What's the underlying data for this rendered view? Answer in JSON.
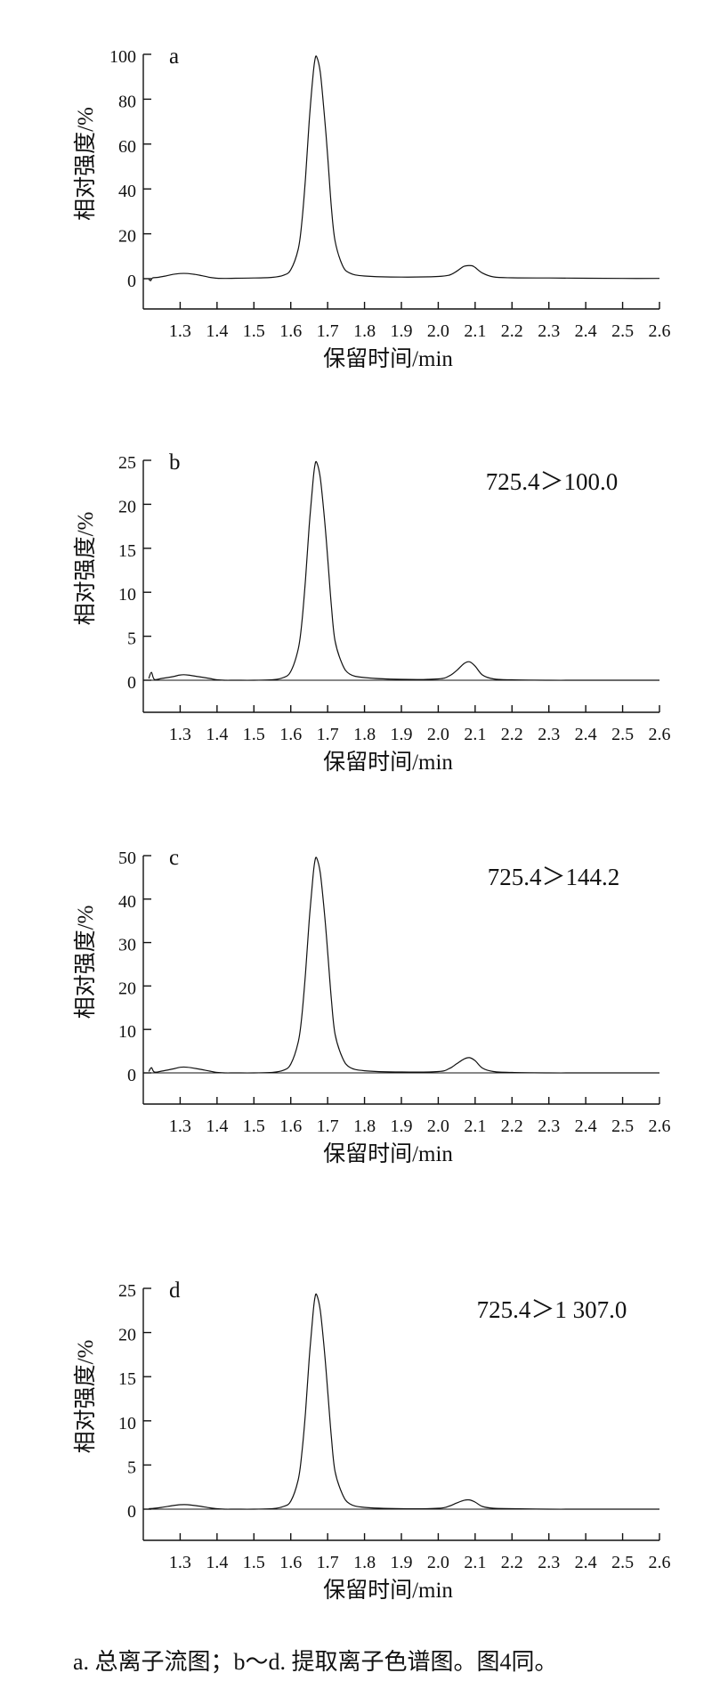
{
  "caption": "a. 总离子流图；b～d. 提取离子色谱图。图4同。",
  "chart_data": [
    {
      "type": "line",
      "panel_label": "a",
      "annotation": "",
      "xlabel": "保留时间/min",
      "ylabel": "相对强度/%",
      "xlim": [
        1.2,
        2.6
      ],
      "ylim": [
        -15,
        100
      ],
      "yticks": [
        0,
        20,
        40,
        60,
        80,
        100
      ],
      "yticks_labels": [
        "0",
        "20",
        "40",
        "60",
        "80",
        "100"
      ],
      "xticks": [
        1.3,
        1.4,
        1.5,
        1.6,
        1.7,
        1.8,
        1.9,
        2.0,
        2.1,
        2.2,
        2.3,
        2.4,
        2.5,
        2.6
      ],
      "xticks_labels": [
        "1.3",
        "1.4",
        "1.5",
        "1.6",
        "1.7",
        "1.8",
        "1.9",
        "2.0",
        "2.1",
        "2.2",
        "2.3",
        "2.4",
        "2.5",
        "2.6"
      ],
      "baseline_line": false,
      "series": [
        {
          "x": [
            1.215,
            1.22,
            1.225,
            1.24,
            1.26,
            1.28,
            1.3,
            1.32,
            1.34,
            1.36,
            1.38,
            1.4,
            1.42,
            1.45,
            1.5,
            1.55,
            1.58,
            1.6,
            1.62,
            1.63,
            1.64,
            1.65,
            1.66,
            1.665,
            1.67,
            1.68,
            1.69,
            1.7,
            1.71,
            1.72,
            1.74,
            1.76,
            1.8,
            1.9,
            2.0,
            2.03,
            2.05,
            2.07,
            2.09,
            2.1,
            2.12,
            2.15,
            2.2,
            2.3,
            2.4,
            2.5,
            2.6
          ],
          "y": [
            -0.3,
            -0.9,
            0.3,
            0.6,
            1.2,
            1.9,
            2.3,
            2.3,
            1.9,
            1.3,
            0.6,
            0.2,
            0.1,
            0.2,
            0.3,
            0.6,
            1.5,
            4,
            13,
            25,
            45,
            70,
            90,
            97,
            99,
            92,
            75,
            55,
            32,
            17,
            6,
            2.5,
            1.2,
            0.7,
            1.0,
            1.6,
            3.3,
            5.5,
            5.8,
            5.0,
            2.5,
            0.8,
            0.4,
            0.3,
            0.2,
            0.1,
            0.1
          ]
        }
      ]
    },
    {
      "type": "line",
      "panel_label": "b",
      "annotation": "725.4＞100.0",
      "xlabel": "保留时间/min",
      "ylabel": "相对强度/%",
      "xlim": [
        1.2,
        2.6
      ],
      "ylim": [
        -3.5,
        25
      ],
      "yticks": [
        0,
        5,
        10,
        15,
        20,
        25
      ],
      "yticks_labels": [
        "0",
        "5",
        "10",
        "15",
        "20",
        "25"
      ],
      "xticks": [
        1.3,
        1.4,
        1.5,
        1.6,
        1.7,
        1.8,
        1.9,
        2.0,
        2.1,
        2.2,
        2.3,
        2.4,
        2.5,
        2.6
      ],
      "xticks_labels": [
        "1.3",
        "1.4",
        "1.5",
        "1.6",
        "1.7",
        "1.8",
        "1.9",
        "2.0",
        "2.1",
        "2.2",
        "2.3",
        "2.4",
        "2.5",
        "2.6"
      ],
      "baseline_line": true,
      "series": [
        {
          "x": [
            1.215,
            1.222,
            1.23,
            1.25,
            1.28,
            1.3,
            1.32,
            1.35,
            1.38,
            1.4,
            1.42,
            1.45,
            1.5,
            1.55,
            1.58,
            1.6,
            1.62,
            1.63,
            1.64,
            1.65,
            1.66,
            1.665,
            1.67,
            1.68,
            1.69,
            1.7,
            1.71,
            1.72,
            1.74,
            1.76,
            1.8,
            1.9,
            2.0,
            2.03,
            2.05,
            2.07,
            2.085,
            2.1,
            2.12,
            2.15,
            2.2,
            2.3,
            2.4,
            2.5,
            2.6
          ],
          "y": [
            0.2,
            0.9,
            0.1,
            0.2,
            0.4,
            0.6,
            0.6,
            0.4,
            0.2,
            0.05,
            0,
            0,
            0,
            0.05,
            0.3,
            1.0,
            3.5,
            6.5,
            11.5,
            17.5,
            22.5,
            24.3,
            24.8,
            23,
            19,
            14,
            8.5,
            4.5,
            1.8,
            0.7,
            0.3,
            0.1,
            0.15,
            0.5,
            1.1,
            1.9,
            2.1,
            1.6,
            0.6,
            0.15,
            0.05,
            0,
            0,
            0,
            0
          ]
        }
      ]
    },
    {
      "type": "line",
      "panel_label": "c",
      "annotation": "725.4＞144.2",
      "xlabel": "保留时间/min",
      "ylabel": "相对强度/%",
      "xlim": [
        1.2,
        2.6
      ],
      "ylim": [
        -7,
        50
      ],
      "yticks": [
        0,
        10,
        20,
        30,
        40,
        50
      ],
      "yticks_labels": [
        "0",
        "10",
        "20",
        "30",
        "40",
        "50"
      ],
      "xticks": [
        1.3,
        1.4,
        1.5,
        1.6,
        1.7,
        1.8,
        1.9,
        2.0,
        2.1,
        2.2,
        2.3,
        2.4,
        2.5,
        2.6
      ],
      "xticks_labels": [
        "1.3",
        "1.4",
        "1.5",
        "1.6",
        "1.7",
        "1.8",
        "1.9",
        "2.0",
        "2.1",
        "2.2",
        "2.3",
        "2.4",
        "2.5",
        "2.6"
      ],
      "baseline_line": true,
      "series": [
        {
          "x": [
            1.215,
            1.222,
            1.23,
            1.25,
            1.28,
            1.3,
            1.32,
            1.35,
            1.38,
            1.4,
            1.42,
            1.45,
            1.5,
            1.55,
            1.58,
            1.6,
            1.62,
            1.63,
            1.64,
            1.65,
            1.66,
            1.665,
            1.67,
            1.68,
            1.69,
            1.7,
            1.71,
            1.72,
            1.74,
            1.76,
            1.8,
            1.9,
            2.0,
            2.03,
            2.05,
            2.07,
            2.085,
            2.1,
            2.12,
            2.15,
            2.2,
            2.3,
            2.4,
            2.5,
            2.6
          ],
          "y": [
            0.3,
            1.2,
            0.2,
            0.4,
            0.9,
            1.3,
            1.3,
            0.9,
            0.4,
            0.1,
            0,
            0,
            0,
            0.1,
            0.6,
            2,
            7,
            13,
            23,
            35,
            45,
            48.5,
            49.5,
            46,
            38,
            28,
            17,
            9,
            3.5,
            1.3,
            0.5,
            0.2,
            0.3,
            1.0,
            2.1,
            3.2,
            3.5,
            2.8,
            1.1,
            0.3,
            0.1,
            0,
            0,
            0,
            0
          ]
        }
      ]
    },
    {
      "type": "line",
      "panel_label": "d",
      "annotation": "725.4＞1 307.0",
      "xlabel": "保留时间/min",
      "ylabel": "相对强度/%",
      "xlim": [
        1.2,
        2.6
      ],
      "ylim": [
        -3.5,
        25
      ],
      "yticks": [
        0,
        5,
        10,
        15,
        20,
        25
      ],
      "yticks_labels": [
        "0",
        "5",
        "10",
        "15",
        "20",
        "25"
      ],
      "xticks": [
        1.3,
        1.4,
        1.5,
        1.6,
        1.7,
        1.8,
        1.9,
        2.0,
        2.1,
        2.2,
        2.3,
        2.4,
        2.5,
        2.6
      ],
      "xticks_labels": [
        "1.3",
        "1.4",
        "1.5",
        "1.6",
        "1.7",
        "1.8",
        "1.9",
        "2.0",
        "2.1",
        "2.2",
        "2.3",
        "2.4",
        "2.5",
        "2.6"
      ],
      "baseline_line": true,
      "series": [
        {
          "x": [
            1.215,
            1.23,
            1.25,
            1.28,
            1.3,
            1.32,
            1.35,
            1.38,
            1.4,
            1.42,
            1.45,
            1.5,
            1.55,
            1.58,
            1.6,
            1.62,
            1.63,
            1.64,
            1.65,
            1.66,
            1.665,
            1.67,
            1.68,
            1.69,
            1.7,
            1.71,
            1.72,
            1.74,
            1.76,
            1.8,
            1.9,
            2.0,
            2.03,
            2.05,
            2.07,
            2.085,
            2.1,
            2.12,
            2.15,
            2.2,
            2.3,
            2.4,
            2.5,
            2.6
          ],
          "y": [
            0.05,
            0.1,
            0.2,
            0.4,
            0.5,
            0.5,
            0.35,
            0.15,
            0.05,
            0,
            0,
            0,
            0.05,
            0.3,
            0.9,
            3.3,
            6.3,
            11,
            17,
            22,
            23.8,
            24.3,
            22.5,
            18.5,
            13.5,
            8.2,
            4.3,
            1.7,
            0.6,
            0.2,
            0.05,
            0.1,
            0.35,
            0.7,
            1.0,
            1.05,
            0.8,
            0.3,
            0.1,
            0.05,
            0,
            0,
            0,
            0
          ]
        }
      ]
    }
  ]
}
